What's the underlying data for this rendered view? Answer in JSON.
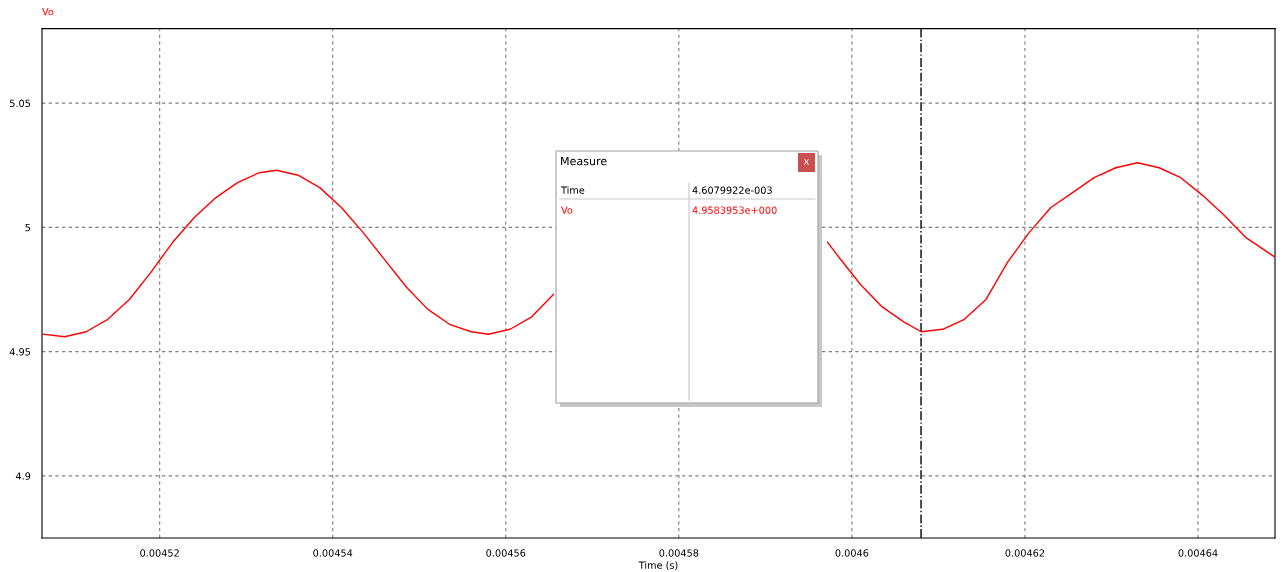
{
  "chart_data": {
    "type": "line",
    "xlabel": "Time (s)",
    "x": [
      0.0045065,
      0.004509,
      0.0045115,
      0.004514,
      0.0045165,
      0.004519,
      0.0045215,
      0.004524,
      0.0045265,
      0.004529,
      0.0045315,
      0.0045335,
      0.004536,
      0.0045385,
      0.004541,
      0.0045435,
      0.004546,
      0.0045485,
      0.004551,
      0.0045535,
      0.004556,
      0.004558,
      0.0045605,
      0.004563,
      0.0045655,
      0.00458,
      0.0045972,
      0.0045985,
      0.004601,
      0.0046035,
      0.004606,
      0.004608,
      0.0046105,
      0.004613,
      0.0046155,
      0.004618,
      0.0046205,
      0.004623,
      0.0046255,
      0.004628,
      0.0046305,
      0.004633,
      0.0046355,
      0.004638,
      0.0046405,
      0.004643,
      0.0046455,
      0.0046489
    ],
    "series": [
      {
        "name": "Vo",
        "color": "#ff0000",
        "values": [
          4.957,
          4.956,
          4.958,
          4.963,
          4.971,
          4.982,
          4.994,
          5.004,
          5.012,
          5.018,
          5.022,
          5.023,
          5.021,
          5.016,
          5.008,
          4.998,
          4.987,
          4.976,
          4.967,
          4.961,
          4.958,
          4.957,
          4.959,
          4.964,
          4.973,
          null,
          4.994,
          4.988,
          4.977,
          4.968,
          4.962,
          4.958,
          4.959,
          4.963,
          4.971,
          4.986,
          4.998,
          5.008,
          5.014,
          5.02,
          5.024,
          5.026,
          5.024,
          5.02,
          5.013,
          5.005,
          4.996,
          4.988
        ]
      }
    ],
    "xlim": [
      0.0045064,
      0.0046489
    ],
    "xticks": [
      0.00452,
      0.00454,
      0.00456,
      0.00458,
      0.0046,
      0.00462,
      0.00464
    ],
    "ylim": [
      4.875,
      5.08
    ],
    "yticks": [
      4.9,
      4.95,
      5,
      5.05
    ],
    "grid": true,
    "legend": "top left",
    "line_style": "solid",
    "marker": "none",
    "ref_lines": [
      {
        "axis": "x",
        "value": 0.0046079922,
        "color": "#000000",
        "line_style": "dashdot"
      }
    ],
    "annotations": [
      "Measure",
      "x",
      "Time",
      "4.6079922e-003",
      "Vo",
      "4.9583953e+000"
    ]
  }
}
